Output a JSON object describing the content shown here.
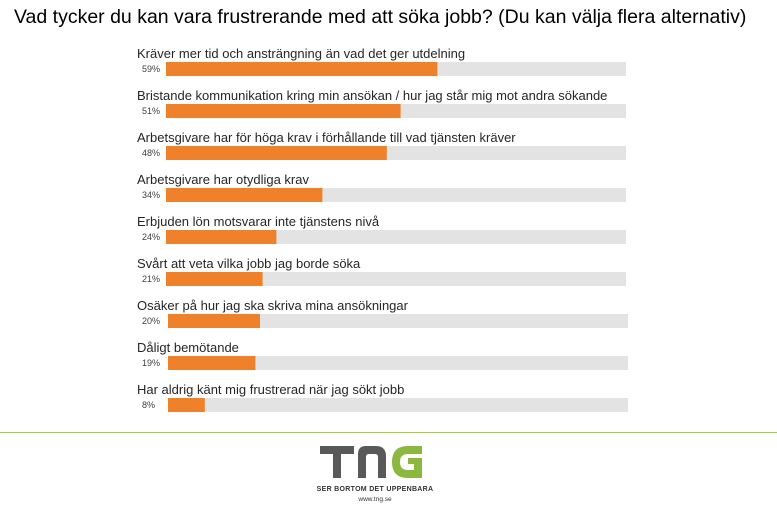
{
  "title": "Vad tycker du kan vara frustrerande med att söka jobb? (Du kan välja flera alternativ)",
  "chart_data": {
    "type": "bar",
    "orientation": "horizontal",
    "title": "Vad tycker du kan vara frustrerande med att söka jobb? (Du kan välja flera alternativ)",
    "xlim": [
      0,
      100
    ],
    "grid": false,
    "categories": [
      "Kräver mer tid och ansträngning än vad det ger utdelning",
      "Bristande kommunikation kring min ansökan / hur jag står mig mot andra sökande",
      "Arbetsgivare har för höga krav i förhållande till vad tjänsten kräver",
      "Arbetsgivare har otydliga krav",
      "Erbjuden lön motsvarar inte tjänstens nivå",
      "Svårt att veta vilka jobb jag borde söka",
      "Osäker på hur jag ska skriva mina ansökningar",
      "Dåligt bemötande",
      "Har aldrig känt mig frustrerad när jag sökt jobb"
    ],
    "values": [
      59,
      51,
      48,
      34,
      24,
      21,
      20,
      19,
      8
    ],
    "value_labels": [
      "59%",
      "51%",
      "48%",
      "34%",
      "24%",
      "21%",
      "20%",
      "19%",
      "8%"
    ],
    "colors": {
      "bar": "#f0812b",
      "track": "#e3e3e3"
    }
  },
  "footer": {
    "logo_text": "TNG",
    "tagline": "SER BORTOM DET UPPENBARA",
    "url": "www.tng.se",
    "colors": {
      "dark": "#595959",
      "green": "#8bb83f"
    }
  }
}
